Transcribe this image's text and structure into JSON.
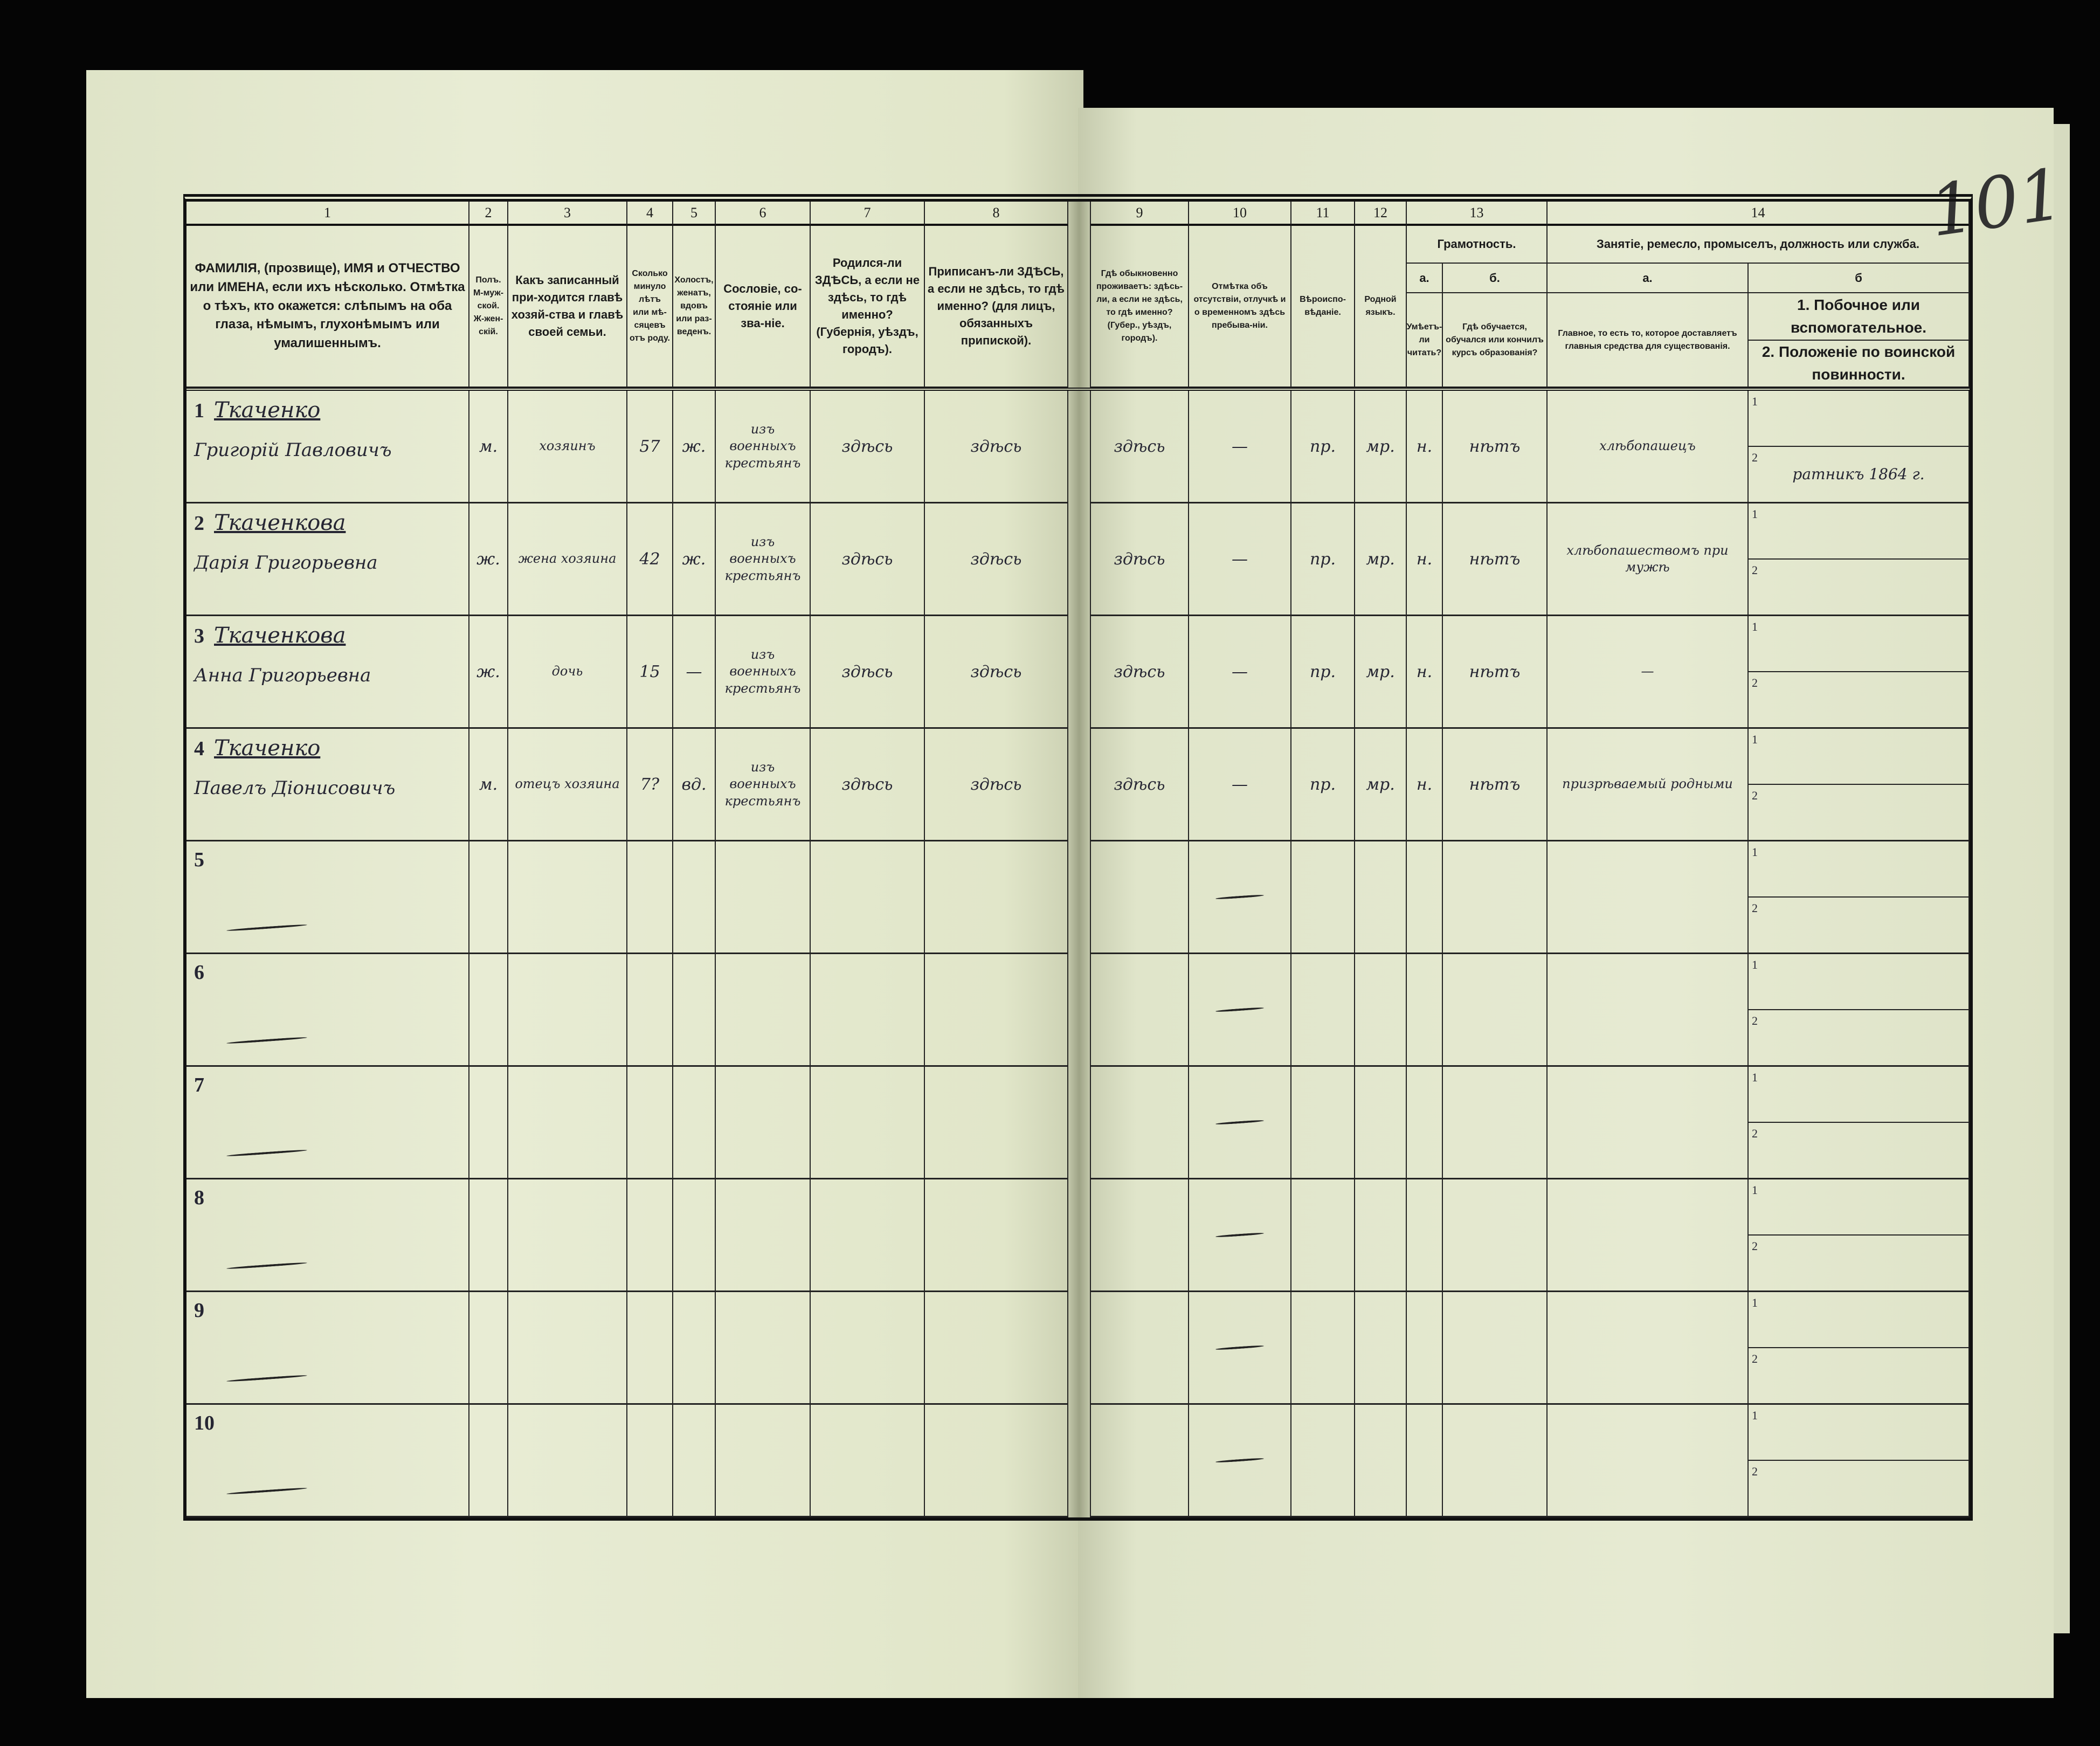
{
  "page_number": "101",
  "header": {
    "numbers": [
      "1",
      "2",
      "3",
      "4",
      "5",
      "6",
      "7",
      "8",
      "9",
      "10",
      "11",
      "12",
      "13",
      "14"
    ],
    "col1": "ФАМИЛІЯ, (прозвище), ИМЯ и ОТЧЕСТВО или ИМЕНА, если ихъ нѣсколько. Отмѣтка о тѣхъ, кто окажется: слѣпымъ на оба глаза, нѣмымъ, глухонѣмымъ или умалишеннымъ.",
    "col2": "Полъ. М-муж-ской. Ж-жен-скій.",
    "col3": "Какъ записанный при-ходится главѣ хозяй-ства и главѣ своей семьи.",
    "col4": "Сколько минуло лѣтъ или мѣ-сяцевъ отъ роду.",
    "col5": "Холостъ, женатъ, вдовъ или раз-веденъ.",
    "col6": "Сословіе, со-стояніе или зва-ніе.",
    "col7": "Родился-ли ЗДѢСЬ, а если не здѣсь, то гдѣ именно? (Губернія, уѣздъ, городъ).",
    "col8": "Приписанъ-ли ЗДѢСЬ, а если не здѣсь, то гдѣ именно? (для лицъ, обязанныхъ припиской).",
    "col9": "Гдѣ обыкновенно проживаетъ: здѣсь-ли, а если не здѣсь, то гдѣ именно? (Губер., уѣздъ, городъ).",
    "col10": "Отмѣтка объ отсутствіи, отлучкѣ и о временномъ здѣсь пребыва-ніи.",
    "col11": "Вѣроиспо-вѣданіе.",
    "col12": "Родной языкъ.",
    "col13_title": "Грамотность.",
    "col13a_letter": "а.",
    "col13b_letter": "б.",
    "col13a": "Умѣетъ-ли читать?",
    "col13b": "Гдѣ обучается, обучался или кончилъ курсъ образованія?",
    "col14_title": "Занятіе, ремесло, промыселъ, должность или служба.",
    "col14a_letter": "а.",
    "col14b_letter": "б",
    "col14a": "Главное, то есть то, которое доставляетъ главныя средства для существованія.",
    "col14b_1": "1. Побочное или вспомогательное.",
    "col14b_2": "2. Положеніе по воинской повинности."
  },
  "sub_labels": [
    "1",
    "2"
  ],
  "rows": [
    {
      "num": "1",
      "surname": "Ткаченко",
      "given": "Григорій Павловичъ",
      "sex": "м.",
      "relation": "хозяинъ",
      "age": "57",
      "marital": "ж.",
      "estate": "изъ военныхъ крестьянъ",
      "birthplace": "здѣсь",
      "registered": "здѣсь",
      "residence": "здѣсь",
      "absence": "—",
      "religion": "пр.",
      "language": "мр.",
      "can_read": "н.",
      "education": "нѣтъ",
      "occupation_main": "хлѣбопашецъ",
      "occupation_side": "",
      "military": "ратникъ 1864 г."
    },
    {
      "num": "2",
      "surname": "Ткаченкова",
      "given": "Дарія Григорьевна",
      "sex": "ж.",
      "relation": "жена хозяина",
      "age": "42",
      "marital": "ж.",
      "estate": "изъ военныхъ крестьянъ",
      "birthplace": "здѣсь",
      "registered": "здѣсь",
      "residence": "здѣсь",
      "absence": "—",
      "religion": "пр.",
      "language": "мр.",
      "can_read": "н.",
      "education": "нѣтъ",
      "occupation_main": "хлѣбопашествомъ при мужѣ",
      "occupation_side": "",
      "military": ""
    },
    {
      "num": "3",
      "surname": "Ткаченкова",
      "given": "Анна Григорьевна",
      "sex": "ж.",
      "relation": "дочь",
      "age": "15",
      "marital": "—",
      "estate": "изъ военныхъ крестьянъ",
      "birthplace": "здѣсь",
      "registered": "здѣсь",
      "residence": "здѣсь",
      "absence": "—",
      "religion": "пр.",
      "language": "мр.",
      "can_read": "н.",
      "education": "нѣтъ",
      "occupation_main": "—",
      "occupation_side": "",
      "military": ""
    },
    {
      "num": "4",
      "surname": "Ткаченко",
      "given": "Павелъ Діонисовичъ",
      "sex": "м.",
      "relation": "отецъ хозяина",
      "age": "7?",
      "marital": "вд.",
      "estate": "изъ военныхъ крестьянъ",
      "birthplace": "здѣсь",
      "registered": "здѣсь",
      "residence": "здѣсь",
      "absence": "—",
      "religion": "пр.",
      "language": "мр.",
      "can_read": "н.",
      "education": "нѣтъ",
      "occupation_main": "призрѣваемый родными",
      "occupation_side": "",
      "military": ""
    },
    {
      "num": "5"
    },
    {
      "num": "6"
    },
    {
      "num": "7"
    },
    {
      "num": "8"
    },
    {
      "num": "9"
    },
    {
      "num": "10"
    }
  ]
}
